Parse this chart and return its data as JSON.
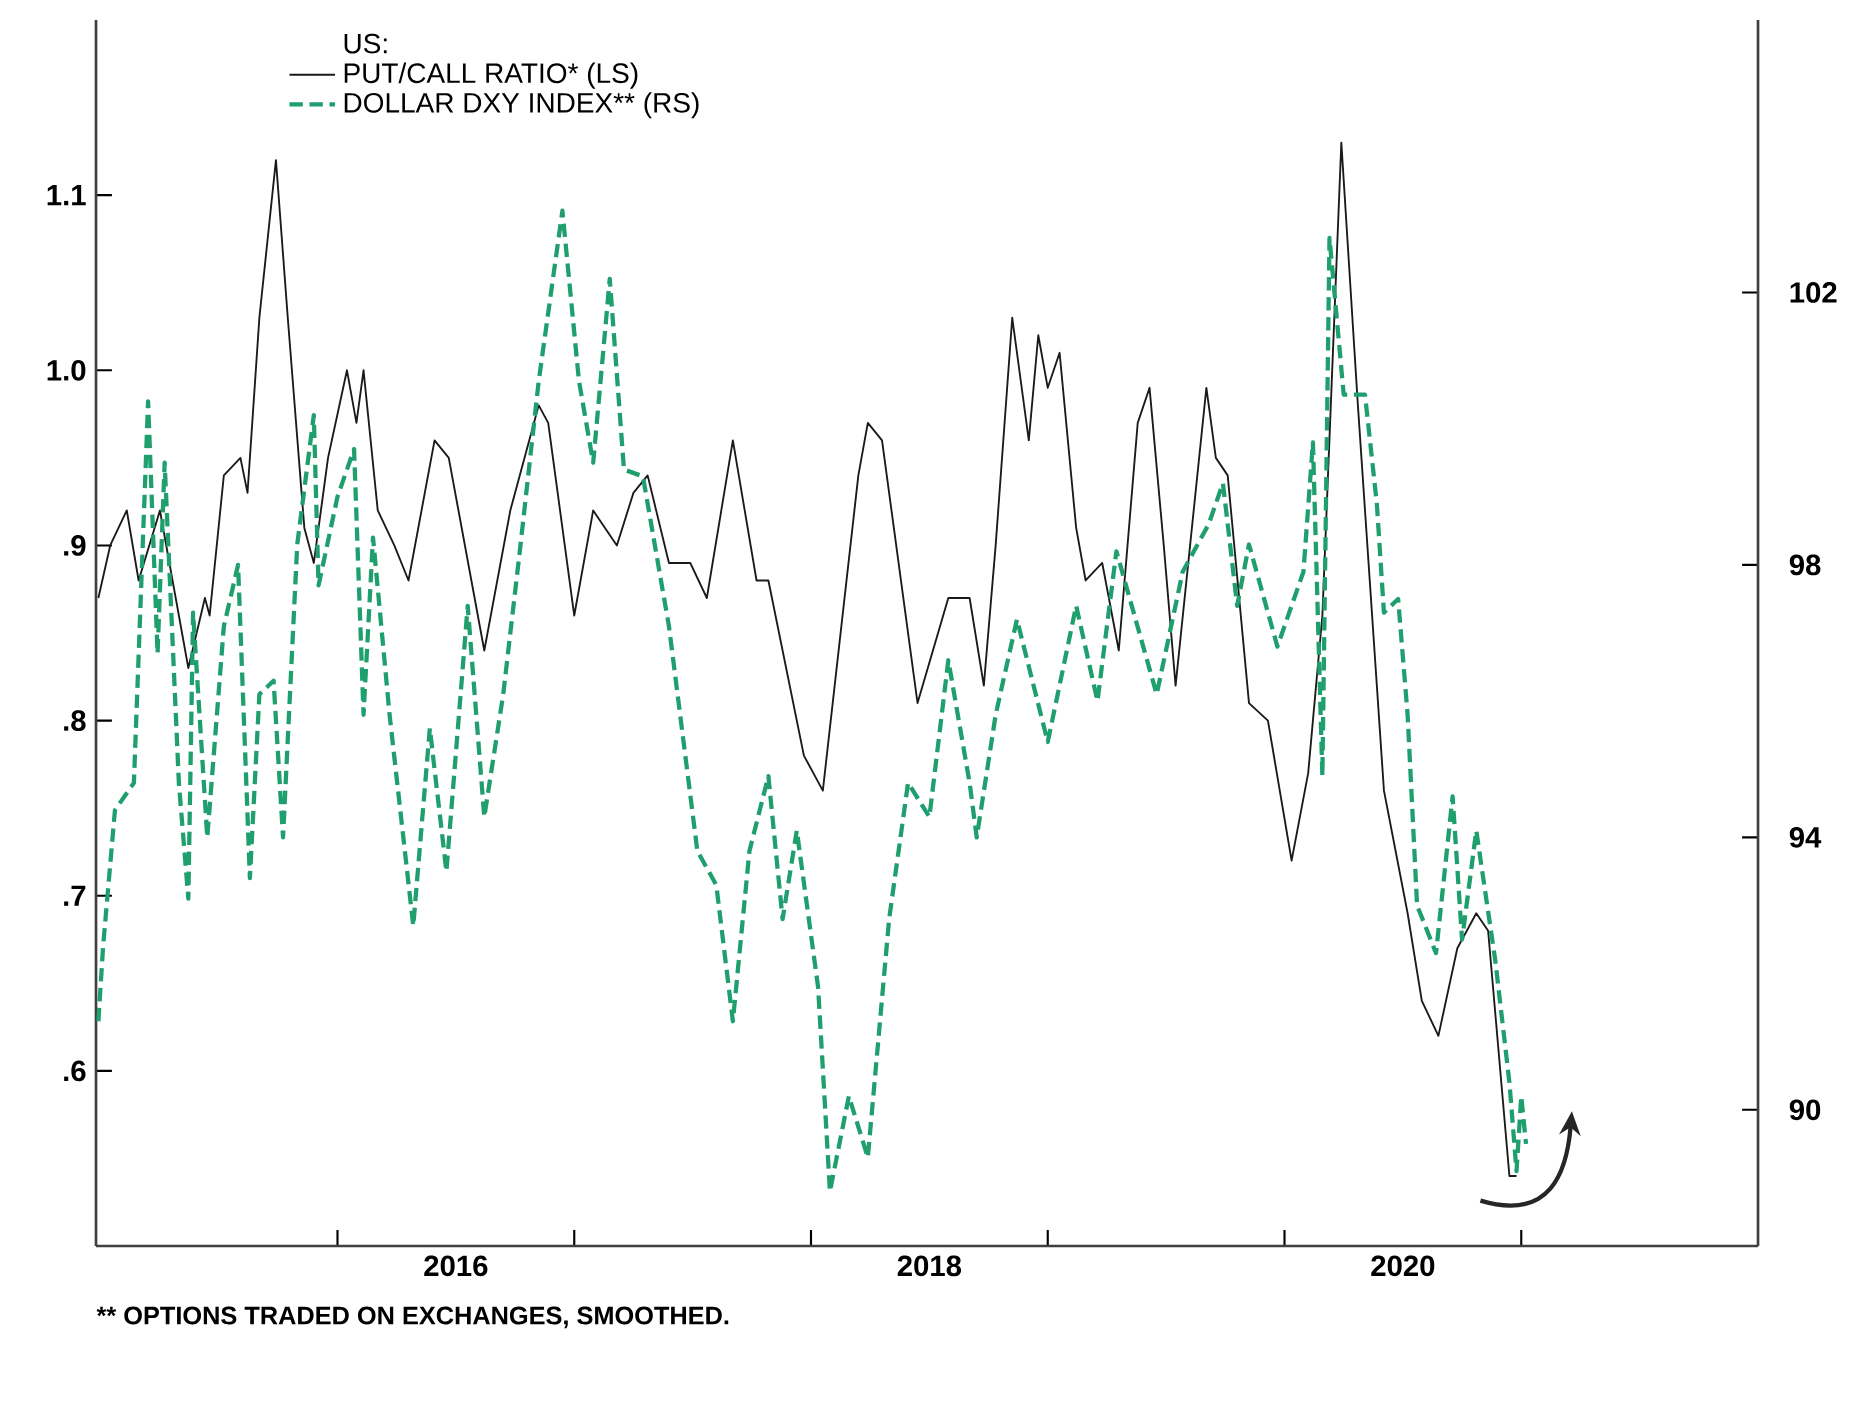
{
  "chart_data": {
    "type": "line",
    "legend_title": "US:",
    "xlim": [
      2014.98,
      2022.0
    ],
    "xticks": [
      {
        "value": 2016,
        "label": null
      },
      {
        "value": 2017,
        "label": null
      },
      {
        "value": 2018,
        "label": null
      },
      {
        "value": 2019,
        "label": null
      },
      {
        "value": 2020,
        "label": null
      },
      {
        "value": 2021,
        "label": null
      },
      {
        "value": 2016.5,
        "label": "2016"
      },
      {
        "value": 2018.5,
        "label": "2018"
      },
      {
        "value": 2020.5,
        "label": "2020"
      }
    ],
    "ylim": [
      0.5,
      1.2
    ],
    "yticks": [
      {
        "value": 0.6,
        "label": ".6"
      },
      {
        "value": 0.7,
        "label": ".7"
      },
      {
        "value": 0.8,
        "label": ".8"
      },
      {
        "value": 0.9,
        "label": ".9"
      },
      {
        "value": 1.0,
        "label": "1.0"
      },
      {
        "value": 1.1,
        "label": "1.1"
      }
    ],
    "y2lim": [
      88,
      106
    ],
    "y2ticks": [
      90,
      94,
      98,
      102
    ],
    "legend": "top left",
    "series": [
      {
        "name": "PUT/CALL RATIO* (LS)",
        "color": "#1a1a1a",
        "line_style": "solid",
        "x": [
          2014.99,
          2015.04,
          2015.11,
          2015.16,
          2015.25,
          2015.33,
          2015.37,
          2015.44,
          2015.46,
          2015.52,
          2015.59,
          2015.62,
          2015.67,
          2015.74,
          2015.79,
          2015.86,
          2015.9,
          2015.96,
          2016.04,
          2016.08,
          2016.11,
          2016.17,
          2016.24,
          2016.3,
          2016.41,
          2016.47,
          2016.62,
          2016.73,
          2016.85,
          2016.89,
          2017.0,
          2017.08,
          2017.18,
          2017.25,
          2017.31,
          2017.4,
          2017.49,
          2017.56,
          2017.67,
          2017.77,
          2017.82,
          2017.97,
          2018.05,
          2018.2,
          2018.24,
          2018.3,
          2018.45,
          2018.58,
          2018.67,
          2018.73,
          2018.78,
          2018.85,
          2018.92,
          2018.96,
          2019.0,
          2019.05,
          2019.12,
          2019.16,
          2019.23,
          2019.3,
          2019.38,
          2019.43,
          2019.49,
          2019.54,
          2019.67,
          2019.71,
          2019.76,
          2019.85,
          2019.93,
          2020.03,
          2020.1,
          2020.16,
          2020.24,
          2020.31,
          2020.42,
          2020.52,
          2020.58,
          2020.65,
          2020.73,
          2020.81,
          2020.86,
          2020.95,
          2020.98
        ],
        "values": [
          0.87,
          0.9,
          0.92,
          0.88,
          0.92,
          0.86,
          0.83,
          0.87,
          0.86,
          0.94,
          0.95,
          0.93,
          1.03,
          1.12,
          1.03,
          0.91,
          0.89,
          0.95,
          1.0,
          0.97,
          1.0,
          0.92,
          0.9,
          0.88,
          0.96,
          0.95,
          0.84,
          0.92,
          0.98,
          0.97,
          0.86,
          0.92,
          0.9,
          0.93,
          0.94,
          0.89,
          0.89,
          0.87,
          0.96,
          0.88,
          0.88,
          0.78,
          0.76,
          0.94,
          0.97,
          0.96,
          0.81,
          0.87,
          0.87,
          0.82,
          0.9,
          1.03,
          0.96,
          1.02,
          0.99,
          1.01,
          0.91,
          0.88,
          0.89,
          0.84,
          0.97,
          0.99,
          0.9,
          0.82,
          0.99,
          0.95,
          0.94,
          0.81,
          0.8,
          0.72,
          0.77,
          0.86,
          1.13,
          0.98,
          0.76,
          0.69,
          0.64,
          0.62,
          0.67,
          0.69,
          0.68,
          0.54,
          0.54
        ]
      },
      {
        "name": "DOLLAR DXY INDEX** (RS)",
        "color": "#1f9e6e",
        "line_style": "dashed",
        "axis": "y2",
        "x": [
          2014.99,
          2015.01,
          2015.06,
          2015.14,
          2015.2,
          2015.24,
          2015.27,
          2015.33,
          2015.37,
          2015.39,
          2015.45,
          2015.52,
          2015.58,
          2015.63,
          2015.67,
          2015.73,
          2015.77,
          2015.83,
          2015.9,
          2015.92,
          2016.0,
          2016.07,
          2016.11,
          2016.15,
          2016.22,
          2016.32,
          2016.39,
          2016.46,
          2016.55,
          2016.62,
          2016.7,
          2016.77,
          2016.85,
          2016.89,
          2016.95,
          2017.02,
          2017.08,
          2017.15,
          2017.21,
          2017.29,
          2017.4,
          2017.52,
          2017.6,
          2017.67,
          2017.74,
          2017.82,
          2017.88,
          2017.94,
          2018.03,
          2018.08,
          2018.16,
          2018.24,
          2018.33,
          2018.41,
          2018.5,
          2018.58,
          2018.67,
          2018.7,
          2018.78,
          2018.87,
          2019.0,
          2019.12,
          2019.21,
          2019.29,
          2019.46,
          2019.57,
          2019.68,
          2019.74,
          2019.8,
          2019.85,
          2019.97,
          2020.08,
          2020.12,
          2020.16,
          2020.19,
          2020.25,
          2020.34,
          2020.39,
          2020.42,
          2020.48,
          2020.52,
          2020.56,
          2020.64,
          2020.71,
          2020.75,
          2020.81,
          2020.89,
          2020.95,
          2020.98,
          2021.0,
          2021.02
        ],
        "values": [
          91.3,
          92.4,
          94.4,
          94.8,
          100.4,
          96.7,
          99.5,
          94.8,
          93.1,
          97.3,
          94.0,
          97.1,
          98.0,
          93.4,
          96.1,
          96.3,
          94.0,
          98.3,
          100.2,
          97.7,
          99.0,
          99.7,
          95.8,
          98.4,
          95.8,
          92.7,
          95.6,
          93.5,
          97.4,
          94.3,
          96.1,
          98.2,
          100.7,
          101.7,
          103.2,
          100.7,
          99.5,
          102.2,
          99.4,
          99.3,
          97.1,
          93.8,
          93.3,
          91.3,
          93.8,
          94.9,
          92.8,
          94.1,
          91.8,
          88.8,
          90.2,
          89.3,
          92.8,
          94.8,
          94.3,
          96.6,
          94.8,
          94.0,
          95.8,
          97.2,
          95.4,
          97.4,
          96.0,
          98.2,
          96.1,
          97.9,
          98.6,
          99.2,
          97.4,
          98.3,
          96.8,
          97.9,
          99.8,
          94.9,
          102.8,
          100.5,
          100.5,
          98.9,
          97.3,
          97.5,
          95.8,
          93.0,
          92.3,
          94.6,
          92.5,
          94.1,
          92.2,
          90.4,
          89.1,
          90.2,
          89.5
        ]
      }
    ],
    "annotations": [
      "** OPTIONS TRADED ON EXCHANGES, SMOOTHED."
    ]
  }
}
